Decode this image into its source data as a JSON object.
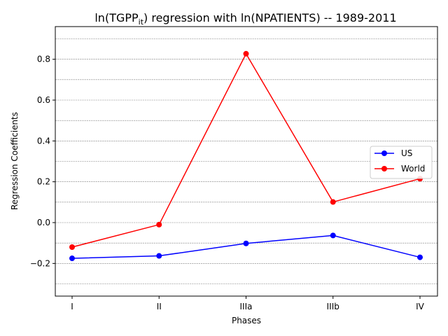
{
  "chart_data": {
    "type": "line",
    "title_main": "ln(TGPP",
    "title_sub": "it",
    "title_rest": ") regression with ln(NPATIENTS) -- 1989-2011",
    "xlabel": "Phases",
    "ylabel": "Regression Coefficients",
    "categories": [
      "I",
      "II",
      "IIIa",
      "IIIb",
      "IV"
    ],
    "ylim": [
      -0.36,
      0.96
    ],
    "yticks": [
      -0.2,
      0.0,
      0.2,
      0.4,
      0.6,
      0.8
    ],
    "ytick_labels": [
      "−0.2",
      "0.0",
      "0.2",
      "0.4",
      "0.6",
      "0.8"
    ],
    "grid": "horizontal dashed every 0.1",
    "legend_position": "center-right",
    "series": [
      {
        "name": "US",
        "color": "#0000ff",
        "values": [
          -0.175,
          -0.163,
          -0.102,
          -0.063,
          -0.17
        ]
      },
      {
        "name": "World",
        "color": "#ff0000",
        "values": [
          -0.12,
          -0.01,
          0.827,
          0.101,
          0.215
        ]
      }
    ]
  }
}
